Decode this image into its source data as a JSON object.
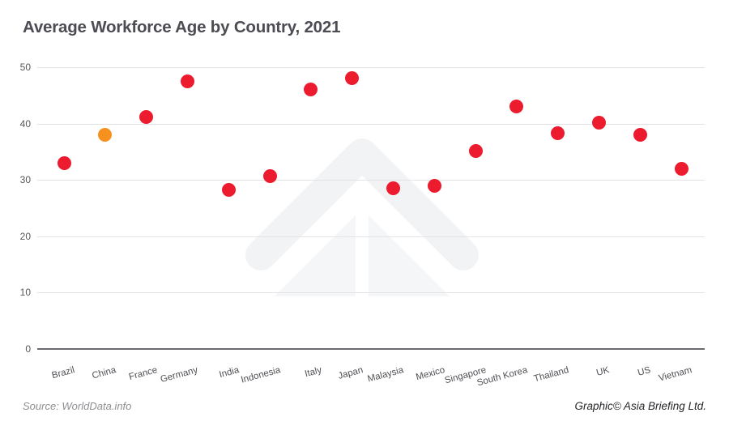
{
  "title": "Average Workforce Age by Country, 2021",
  "footer": {
    "source": "Source: WorldData.info",
    "credit": "Graphic© Asia Briefing Ltd."
  },
  "chart_data": {
    "type": "scatter",
    "title": "Average Workforce Age by Country, 2021",
    "categories": [
      "Brazil",
      "China",
      "France",
      "Germany",
      "India",
      "Indonesia",
      "Italy",
      "Japan",
      "Malaysia",
      "Mexico",
      "Singapore",
      "South Korea",
      "Thailand",
      "UK",
      "US",
      "Vietnam"
    ],
    "values": [
      33.0,
      38.0,
      41.2,
      47.5,
      28.3,
      30.7,
      46.1,
      48.1,
      28.5,
      28.9,
      35.2,
      43.0,
      38.3,
      40.1,
      38.0,
      31.9
    ],
    "highlight": {
      "category": "China",
      "color": "#f6911e"
    },
    "point_color": "#ec1b2d",
    "ylim": [
      0,
      50
    ],
    "yticks": [
      0,
      10,
      20,
      30,
      40,
      50
    ],
    "xlabel": "",
    "ylabel": "",
    "grid": "horizontal",
    "legend": "none"
  },
  "colors": {
    "gridline": "#e3e3e5",
    "axis_line": "#6b6b6f",
    "title_text": "#4c4c53",
    "tick_text": "#58585c",
    "category_text": "#4f5054",
    "source_text": "#8f8f93",
    "credit_text": "#26262a",
    "watermark_band": "#f2f3f5",
    "watermark_inner": "#f5f6f8"
  }
}
